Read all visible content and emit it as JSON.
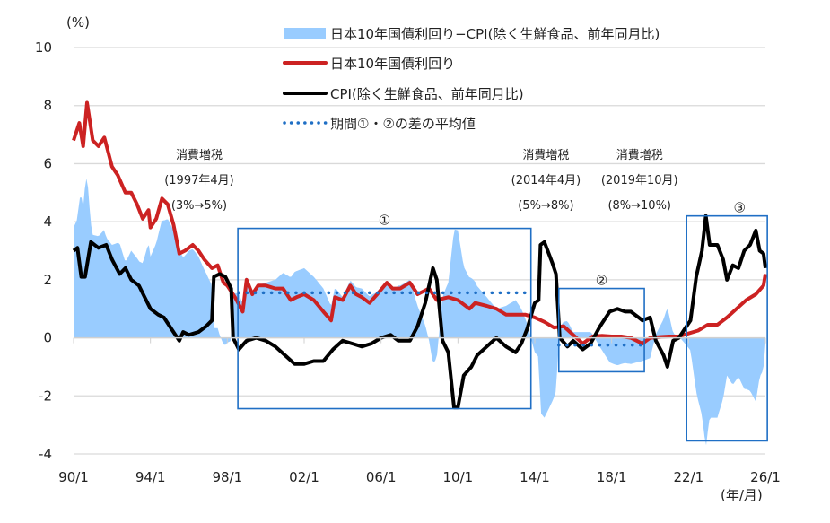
{
  "chart_data": {
    "type": "line",
    "y_unit_label": "(%)",
    "x_unit_label": "(年/月)",
    "ylim": [
      -4,
      10
    ],
    "yticks": [
      -4,
      -2,
      0,
      2,
      4,
      6,
      8,
      10
    ],
    "xlim": [
      1990,
      2026
    ],
    "xticks": [
      {
        "year": 1990,
        "label": "90/1"
      },
      {
        "year": 1994,
        "label": "94/1"
      },
      {
        "year": 1998,
        "label": "98/1"
      },
      {
        "year": 2002,
        "label": "02/1"
      },
      {
        "year": 2006,
        "label": "06/1"
      },
      {
        "year": 2010,
        "label": "10/1"
      },
      {
        "year": 2014,
        "label": "14/1"
      },
      {
        "year": 2018,
        "label": "18/1"
      },
      {
        "year": 2022,
        "label": "22/1"
      },
      {
        "year": 2026,
        "label": "26/1"
      }
    ],
    "grid": true,
    "legend_position": "top-right",
    "colors": {
      "spread": "#99ccff",
      "yield": "#cc2222",
      "cpi": "#000000",
      "avg": "#1f6fc5",
      "box": "#1f6fc5",
      "grid": "#d9d9d9"
    },
    "legend": [
      {
        "key": "spread",
        "label": "日本10年国債利回り−CPI(除く生鮮食品、前年同月比)"
      },
      {
        "key": "yield",
        "label": "日本10年国債利回り"
      },
      {
        "key": "cpi",
        "label": "CPI(除く生鮮食品、前年同月比)"
      },
      {
        "key": "avg",
        "label": "期間①・②の差の平均値"
      }
    ],
    "series": [
      {
        "key": "yield",
        "name": "日本10年国債利回り",
        "points": [
          [
            1990.0,
            6.8
          ],
          [
            1990.3,
            7.4
          ],
          [
            1990.5,
            6.6
          ],
          [
            1990.7,
            8.1
          ],
          [
            1991.0,
            6.8
          ],
          [
            1991.3,
            6.6
          ],
          [
            1991.6,
            6.9
          ],
          [
            1992.0,
            5.9
          ],
          [
            1992.3,
            5.6
          ],
          [
            1992.7,
            5.0
          ],
          [
            1993.0,
            5.0
          ],
          [
            1993.3,
            4.6
          ],
          [
            1993.6,
            4.1
          ],
          [
            1993.9,
            4.4
          ],
          [
            1994.0,
            3.8
          ],
          [
            1994.3,
            4.1
          ],
          [
            1994.6,
            4.8
          ],
          [
            1994.9,
            4.6
          ],
          [
            1995.2,
            3.9
          ],
          [
            1995.5,
            2.9
          ],
          [
            1995.8,
            3.0
          ],
          [
            1996.2,
            3.2
          ],
          [
            1996.5,
            3.0
          ],
          [
            1996.8,
            2.7
          ],
          [
            1997.2,
            2.4
          ],
          [
            1997.5,
            2.5
          ],
          [
            1997.8,
            1.9
          ],
          [
            1998.0,
            1.8
          ],
          [
            1998.4,
            1.4
          ],
          [
            1998.8,
            0.9
          ],
          [
            1999.0,
            2.0
          ],
          [
            1999.3,
            1.5
          ],
          [
            1999.6,
            1.8
          ],
          [
            2000.0,
            1.8
          ],
          [
            2000.5,
            1.7
          ],
          [
            2000.9,
            1.7
          ],
          [
            2001.3,
            1.3
          ],
          [
            2001.6,
            1.4
          ],
          [
            2002.0,
            1.5
          ],
          [
            2002.5,
            1.3
          ],
          [
            2003.0,
            0.9
          ],
          [
            2003.4,
            0.6
          ],
          [
            2003.6,
            1.4
          ],
          [
            2004.0,
            1.3
          ],
          [
            2004.4,
            1.8
          ],
          [
            2004.7,
            1.5
          ],
          [
            2005.0,
            1.4
          ],
          [
            2005.4,
            1.2
          ],
          [
            2005.8,
            1.5
          ],
          [
            2006.3,
            1.9
          ],
          [
            2006.6,
            1.7
          ],
          [
            2007.0,
            1.7
          ],
          [
            2007.5,
            1.9
          ],
          [
            2007.9,
            1.5
          ],
          [
            2008.5,
            1.7
          ],
          [
            2008.9,
            1.3
          ],
          [
            2009.5,
            1.4
          ],
          [
            2010.0,
            1.3
          ],
          [
            2010.6,
            1.0
          ],
          [
            2010.9,
            1.2
          ],
          [
            2011.5,
            1.1
          ],
          [
            2012.0,
            1.0
          ],
          [
            2012.5,
            0.8
          ],
          [
            2013.0,
            0.8
          ],
          [
            2013.5,
            0.8
          ],
          [
            2014.0,
            0.7
          ],
          [
            2014.5,
            0.55
          ],
          [
            2015.0,
            0.35
          ],
          [
            2015.5,
            0.4
          ],
          [
            2016.0,
            0.1
          ],
          [
            2016.5,
            -0.2
          ],
          [
            2017.0,
            0.05
          ],
          [
            2017.5,
            0.07
          ],
          [
            2018.0,
            0.05
          ],
          [
            2018.5,
            0.05
          ],
          [
            2019.0,
            0.0
          ],
          [
            2019.6,
            -0.2
          ],
          [
            2020.0,
            0.0
          ],
          [
            2020.5,
            0.03
          ],
          [
            2021.0,
            0.05
          ],
          [
            2021.5,
            0.05
          ],
          [
            2022.0,
            0.15
          ],
          [
            2022.5,
            0.25
          ],
          [
            2023.0,
            0.45
          ],
          [
            2023.5,
            0.45
          ],
          [
            2024.0,
            0.7
          ],
          [
            2024.5,
            1.0
          ],
          [
            2025.0,
            1.3
          ],
          [
            2025.5,
            1.5
          ],
          [
            2025.9,
            1.8
          ],
          [
            2026.0,
            2.2
          ]
        ]
      },
      {
        "key": "cpi",
        "name": "CPI(除く生鮮食品、前年同月比)",
        "points": [
          [
            1990.0,
            3.0
          ],
          [
            1990.2,
            3.1
          ],
          [
            1990.4,
            2.1
          ],
          [
            1990.6,
            2.1
          ],
          [
            1990.9,
            3.3
          ],
          [
            1991.3,
            3.1
          ],
          [
            1991.7,
            3.2
          ],
          [
            1992.0,
            2.7
          ],
          [
            1992.4,
            2.2
          ],
          [
            1992.7,
            2.4
          ],
          [
            1993.0,
            2.0
          ],
          [
            1993.4,
            1.8
          ],
          [
            1993.7,
            1.4
          ],
          [
            1994.0,
            1.0
          ],
          [
            1994.4,
            0.8
          ],
          [
            1994.7,
            0.7
          ],
          [
            1995.1,
            0.3
          ],
          [
            1995.5,
            -0.1
          ],
          [
            1995.7,
            0.2
          ],
          [
            1996.0,
            0.1
          ],
          [
            1996.5,
            0.2
          ],
          [
            1996.9,
            0.4
          ],
          [
            1997.2,
            0.6
          ],
          [
            1997.3,
            2.1
          ],
          [
            1997.6,
            2.2
          ],
          [
            1997.9,
            2.1
          ],
          [
            1998.2,
            1.7
          ],
          [
            1998.3,
            0.0
          ],
          [
            1998.6,
            -0.4
          ],
          [
            1999.0,
            -0.1
          ],
          [
            1999.5,
            0.0
          ],
          [
            2000.0,
            -0.1
          ],
          [
            2000.5,
            -0.3
          ],
          [
            2001.0,
            -0.6
          ],
          [
            2001.5,
            -0.9
          ],
          [
            2002.0,
            -0.9
          ],
          [
            2002.5,
            -0.8
          ],
          [
            2003.0,
            -0.8
          ],
          [
            2003.5,
            -0.4
          ],
          [
            2004.0,
            -0.1
          ],
          [
            2004.5,
            -0.2
          ],
          [
            2005.0,
            -0.3
          ],
          [
            2005.5,
            -0.2
          ],
          [
            2006.0,
            0.0
          ],
          [
            2006.5,
            0.1
          ],
          [
            2006.9,
            -0.1
          ],
          [
            2007.5,
            -0.1
          ],
          [
            2007.9,
            0.4
          ],
          [
            2008.3,
            1.2
          ],
          [
            2008.7,
            2.4
          ],
          [
            2008.9,
            2.0
          ],
          [
            2009.2,
            -0.1
          ],
          [
            2009.5,
            -0.5
          ],
          [
            2009.8,
            -2.4
          ],
          [
            2010.0,
            -2.4
          ],
          [
            2010.3,
            -1.3
          ],
          [
            2010.7,
            -1.0
          ],
          [
            2011.0,
            -0.6
          ],
          [
            2011.5,
            -0.3
          ],
          [
            2012.0,
            0.0
          ],
          [
            2012.5,
            -0.3
          ],
          [
            2013.0,
            -0.5
          ],
          [
            2013.3,
            -0.2
          ],
          [
            2013.6,
            0.3
          ],
          [
            2014.0,
            1.2
          ],
          [
            2014.2,
            1.3
          ],
          [
            2014.3,
            3.2
          ],
          [
            2014.5,
            3.3
          ],
          [
            2014.9,
            2.6
          ],
          [
            2015.1,
            2.2
          ],
          [
            2015.3,
            0.0
          ],
          [
            2015.7,
            -0.3
          ],
          [
            2016.0,
            -0.1
          ],
          [
            2016.5,
            -0.4
          ],
          [
            2016.9,
            -0.2
          ],
          [
            2017.4,
            0.4
          ],
          [
            2017.9,
            0.9
          ],
          [
            2018.3,
            1.0
          ],
          [
            2018.7,
            0.9
          ],
          [
            2019.0,
            0.9
          ],
          [
            2019.4,
            0.7
          ],
          [
            2019.6,
            0.6
          ],
          [
            2020.0,
            0.7
          ],
          [
            2020.3,
            -0.1
          ],
          [
            2020.7,
            -0.6
          ],
          [
            2020.9,
            -1.0
          ],
          [
            2021.2,
            -0.1
          ],
          [
            2021.5,
            0.0
          ],
          [
            2021.8,
            0.3
          ],
          [
            2022.1,
            0.6
          ],
          [
            2022.4,
            2.1
          ],
          [
            2022.7,
            3.0
          ],
          [
            2022.9,
            4.2
          ],
          [
            2023.1,
            3.2
          ],
          [
            2023.5,
            3.2
          ],
          [
            2023.8,
            2.7
          ],
          [
            2024.0,
            2.0
          ],
          [
            2024.3,
            2.5
          ],
          [
            2024.6,
            2.4
          ],
          [
            2024.9,
            3.0
          ],
          [
            2025.2,
            3.2
          ],
          [
            2025.5,
            3.7
          ],
          [
            2025.7,
            3.0
          ],
          [
            2025.9,
            2.9
          ],
          [
            2026.0,
            2.4
          ]
        ]
      }
    ],
    "spread_definition": "yield - cpi",
    "average_lines": [
      {
        "label": "①",
        "x": [
          1998.6,
          2013.8
        ],
        "value": 1.55
      },
      {
        "label": "②",
        "x": [
          2015.25,
          2019.7
        ],
        "value": -0.25
      }
    ],
    "period_boxes": [
      {
        "label": "①",
        "x": [
          1998.55,
          2013.8
        ],
        "y": [
          -2.44,
          3.77
        ]
      },
      {
        "label": "②",
        "x": [
          2015.25,
          2019.7
        ],
        "y": [
          -1.17,
          1.7
        ]
      },
      {
        "label": "③",
        "x": [
          2021.9,
          2026.1
        ],
        "y": [
          -3.55,
          4.2
        ]
      }
    ],
    "annotations": [
      {
        "x": 1997.75,
        "lines": [
          "消費増税",
          "(1997年4月)",
          "(3%→5%)"
        ]
      },
      {
        "x": 2014.3,
        "lines": [
          "消費増税",
          "(2014年4月)",
          "(5%→8%)"
        ]
      },
      {
        "x": 2019.45,
        "lines": [
          "消費増税",
          "(2019年10月)",
          "(8%→10%)"
        ]
      }
    ]
  }
}
